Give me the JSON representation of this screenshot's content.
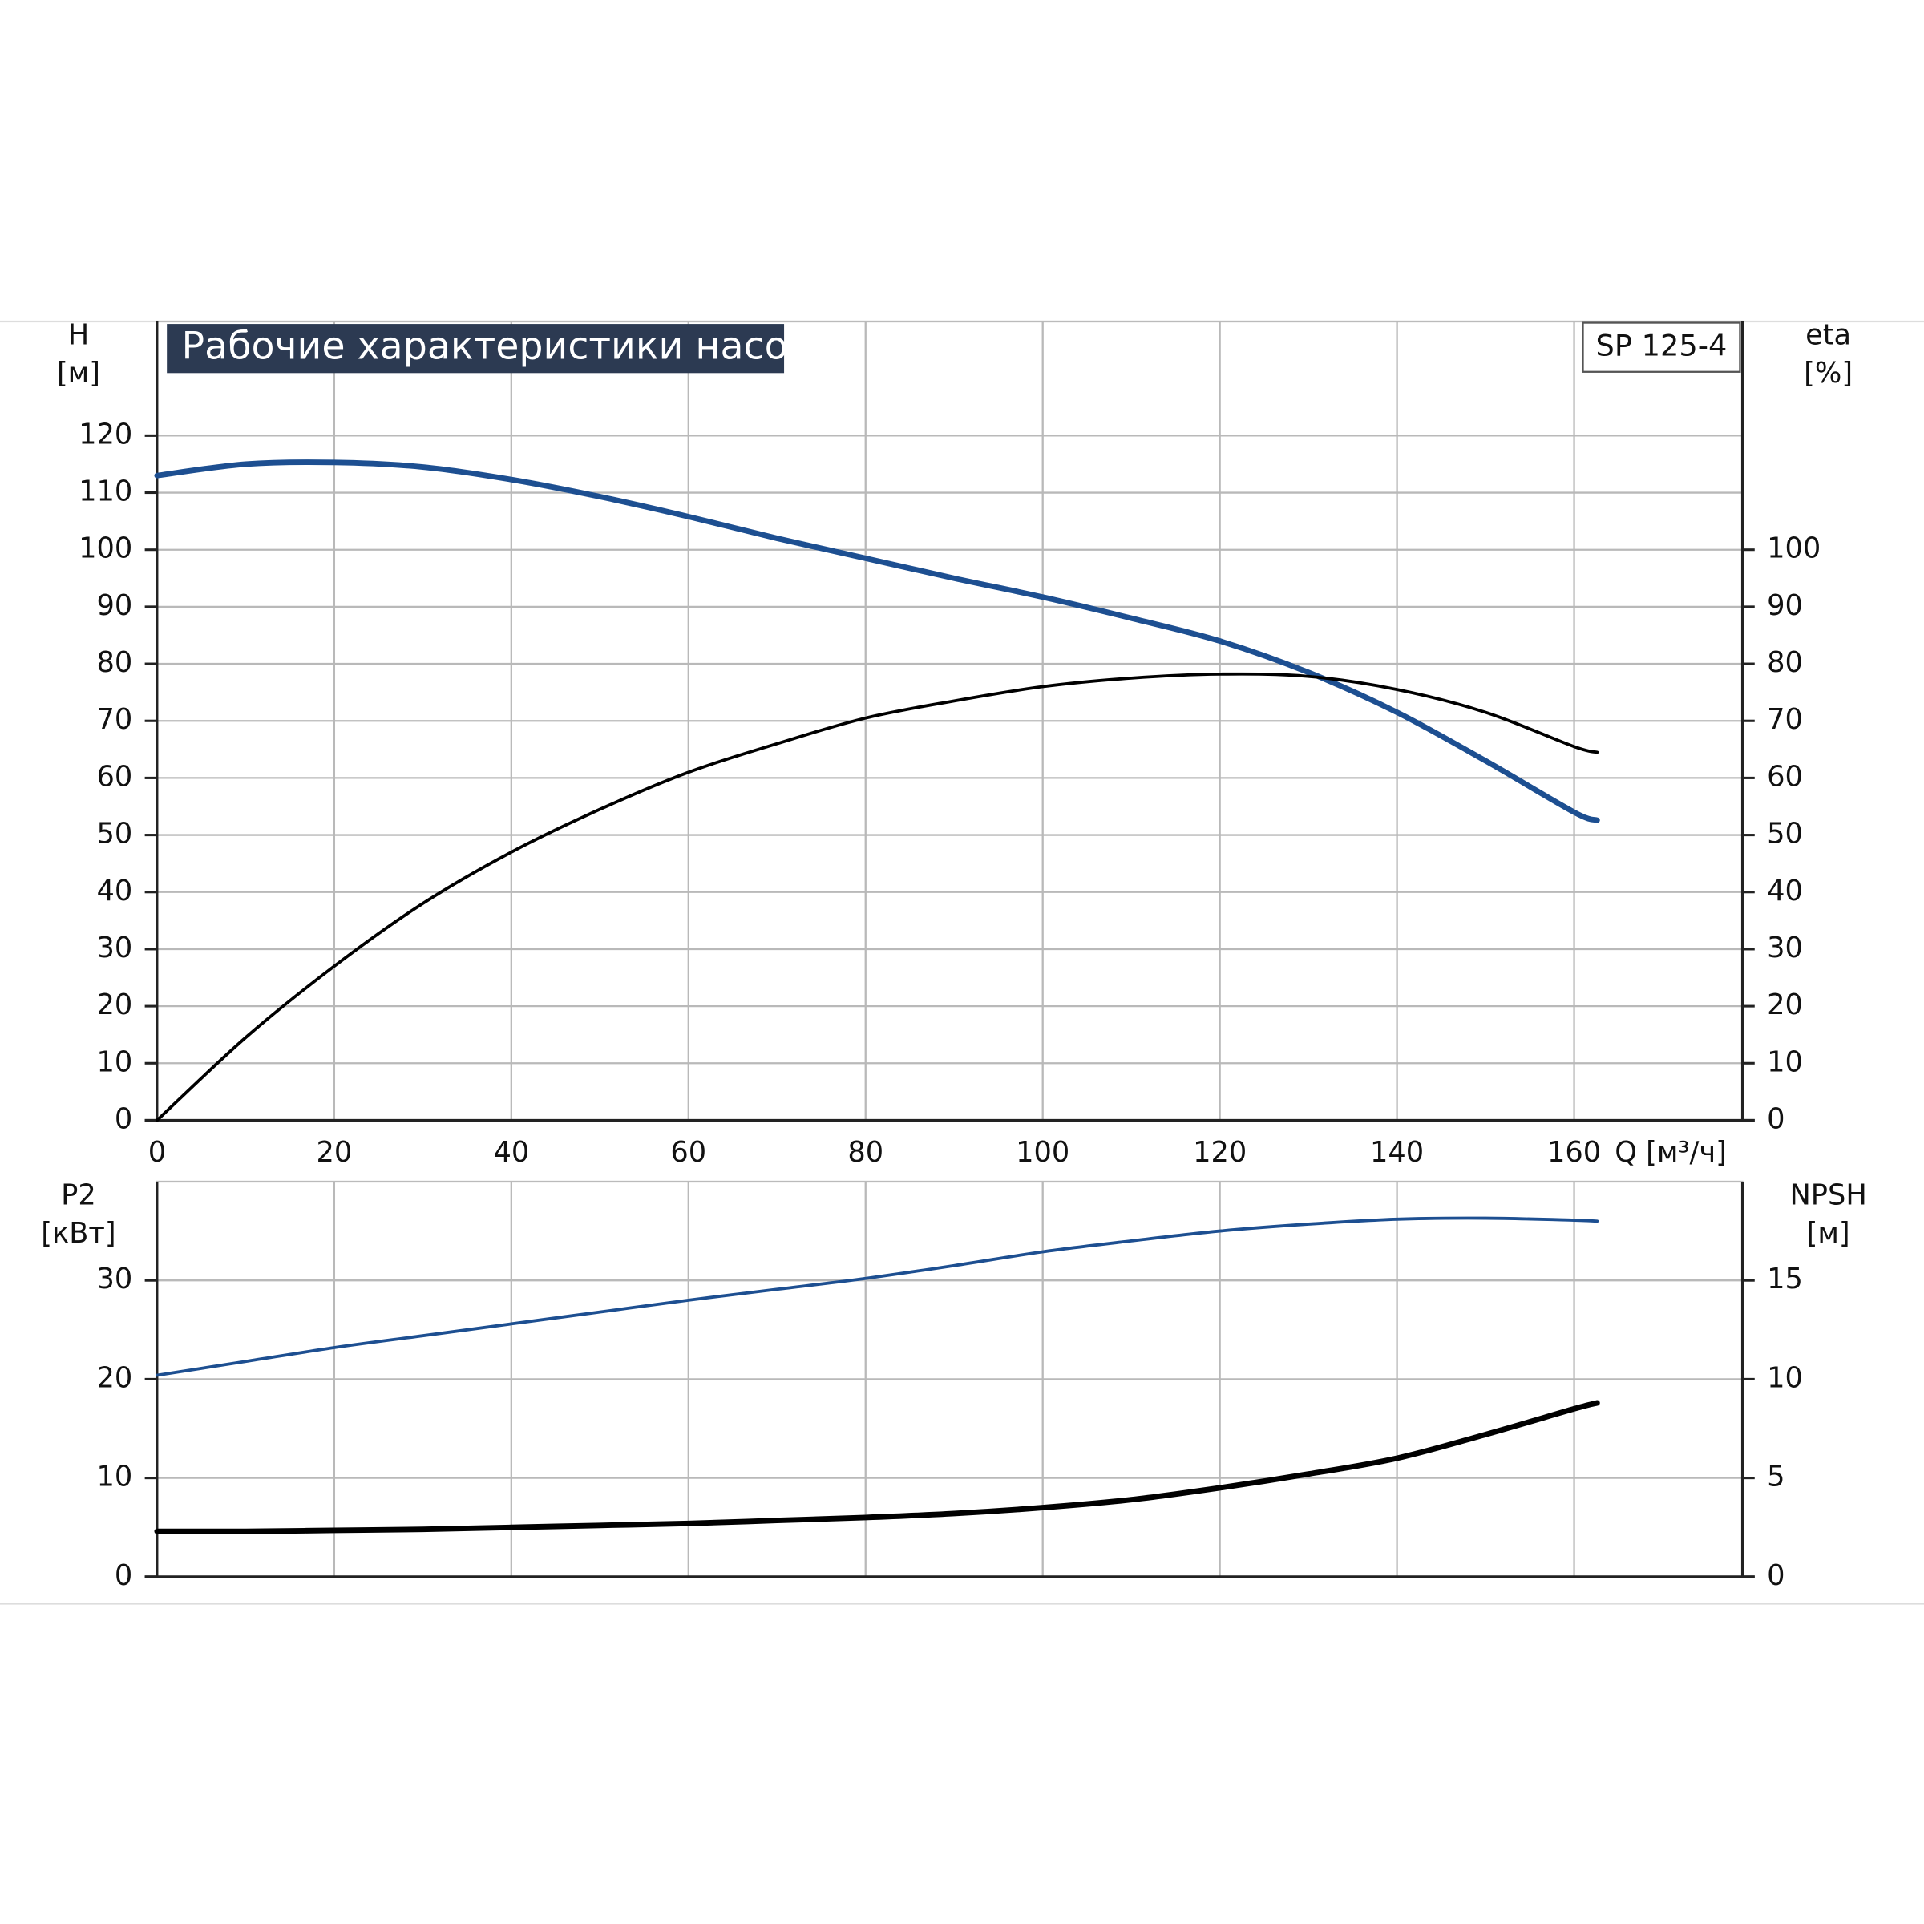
{
  "chart_data": [
    {
      "type": "line",
      "title": "Рабочие характеристики насоса",
      "model": "SP 125-4",
      "x_label": "Q [м³/ч]",
      "y_label": "H",
      "y_unit": "[м]",
      "y2_label": "eta",
      "y2_unit": "[%]",
      "x": [
        0,
        10,
        20,
        30,
        40,
        50,
        60,
        70,
        80,
        90,
        100,
        110,
        120,
        130,
        140,
        150,
        160,
        162.6
      ],
      "xlim": [
        0,
        179
      ],
      "xticks": [
        0,
        20,
        40,
        60,
        80,
        100,
        120,
        140,
        160
      ],
      "ylim": [
        0,
        140
      ],
      "yticks": [
        0,
        10,
        20,
        30,
        40,
        50,
        60,
        70,
        80,
        90,
        100,
        110,
        120
      ],
      "y2lim": [
        0,
        140
      ],
      "y2ticks": [
        0,
        10,
        20,
        30,
        40,
        50,
        60,
        70,
        80,
        90,
        100
      ],
      "grid": true,
      "series": [
        {
          "color": "#1d4f91",
          "values": [
            113,
            115,
            115.3,
            114.5,
            112.3,
            109.3,
            105.8,
            102,
            98.5,
            95,
            91.7,
            88,
            84,
            78.5,
            71.5,
            63,
            54,
            52.6
          ]
        },
        {
          "color": "#000000",
          "axis": "y2",
          "values": [
            0,
            14.5,
            27,
            38,
            47,
            54.5,
            61,
            66,
            70.5,
            73.5,
            76,
            77.5,
            78.2,
            77.8,
            75.5,
            71.5,
            65.5,
            64.5
          ]
        }
      ]
    },
    {
      "type": "line",
      "y_label": "P2",
      "y_unit": "[кВт]",
      "y2_label": "NPSH",
      "y2_unit": "[м]",
      "x": [
        0,
        10,
        20,
        30,
        40,
        50,
        60,
        70,
        80,
        90,
        100,
        110,
        120,
        130,
        140,
        150,
        160,
        162.6
      ],
      "xlim": [
        0,
        179
      ],
      "xticks": [
        0,
        20,
        40,
        60,
        80,
        100,
        120,
        140,
        160
      ],
      "ylim": [
        0,
        40
      ],
      "yticks": [
        0,
        10,
        20,
        30
      ],
      "y2lim": [
        0,
        20
      ],
      "y2ticks": [
        0,
        5,
        10,
        15
      ],
      "grid": true,
      "series": [
        {
          "color": "#1d4f91",
          "values": [
            20.4,
            21.8,
            23.2,
            24.4,
            25.6,
            26.8,
            28,
            29.1,
            30.2,
            31.5,
            32.9,
            34,
            35,
            35.7,
            36.2,
            36.3,
            36.1,
            36
          ]
        },
        {
          "color": "#000000",
          "axis": "y2",
          "values": [
            2.3,
            2.3,
            2.35,
            2.4,
            2.5,
            2.6,
            2.7,
            2.85,
            3.0,
            3.2,
            3.5,
            3.9,
            4.5,
            5.2,
            6.0,
            7.2,
            8.5,
            8.8
          ]
        }
      ]
    }
  ]
}
